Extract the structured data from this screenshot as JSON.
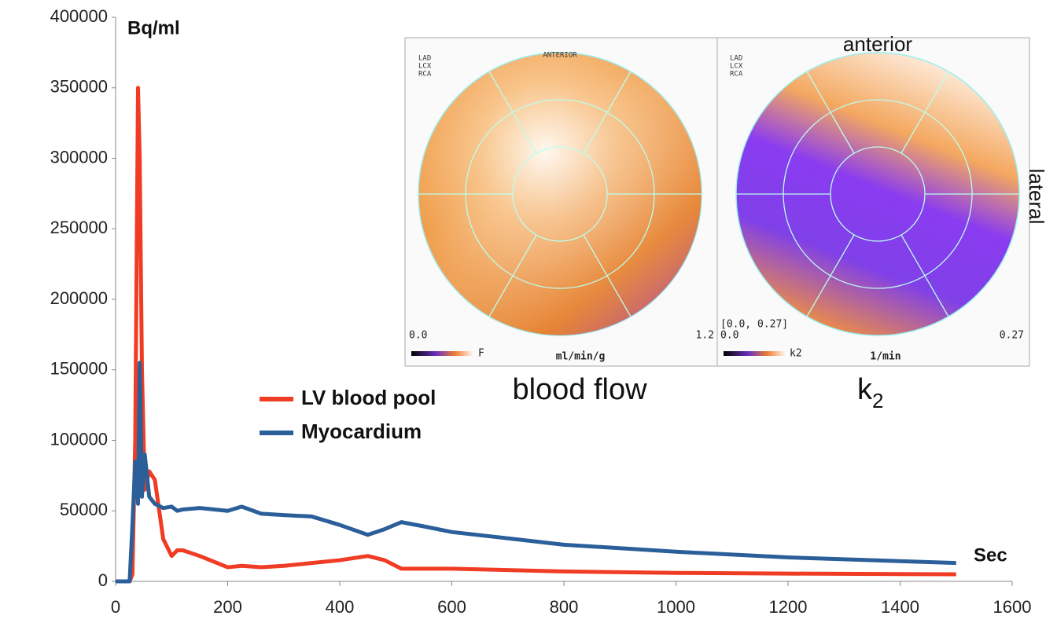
{
  "chart_data": {
    "type": "line",
    "y_label": "Bq/ml",
    "x_label": "Sec",
    "x": [
      0,
      25,
      30,
      35,
      40,
      43,
      47,
      52,
      60,
      70,
      85,
      100,
      110,
      120,
      150,
      200,
      225,
      260,
      300,
      350,
      400,
      450,
      480,
      510,
      550,
      600,
      800,
      1000,
      1200,
      1500
    ],
    "series": [
      {
        "name": "LV blood pool",
        "color": "#f03c24",
        "values": [
          0,
          0,
          5000,
          100000,
          350000,
          300000,
          150000,
          65000,
          78000,
          72000,
          30000,
          18000,
          22000,
          22000,
          18000,
          10000,
          11000,
          10000,
          11000,
          13000,
          15000,
          18000,
          15000,
          9000,
          9000,
          9000,
          7000,
          6000,
          5500,
          5000
        ]
      },
      {
        "name": "Myocardium",
        "color": "#2b5f9a",
        "values": [
          0,
          0,
          40000,
          85000,
          55000,
          155000,
          60000,
          90000,
          60000,
          55000,
          52000,
          53000,
          50000,
          51000,
          52000,
          50000,
          53000,
          48000,
          47000,
          46000,
          40000,
          33000,
          37000,
          42000,
          39000,
          35000,
          26000,
          21000,
          17000,
          13000
        ]
      }
    ],
    "xlim": [
      0,
      1600
    ],
    "xticks": [
      0,
      200,
      400,
      600,
      800,
      1000,
      1200,
      1400,
      1600
    ],
    "ylim": [
      0,
      400000
    ],
    "yticks": [
      0,
      50000,
      100000,
      150000,
      200000,
      250000,
      300000,
      350000,
      400000
    ],
    "grid": false
  },
  "insets": {
    "anterior": "anterior",
    "lateral": "lateral",
    "left": {
      "caption": "blood flow",
      "top_small": "ANTERIOR",
      "min": "0.0",
      "max": "1.2",
      "bar_label": "F",
      "unit": "ml/min/g",
      "keys": [
        "LAD",
        "LCX",
        "RCA"
      ]
    },
    "right": {
      "caption_main": "k",
      "caption_sub": "2",
      "range": "[0.0, 0.27]",
      "min": "0.0",
      "max": "0.27",
      "bar_label": "k2",
      "unit": "1/min",
      "keys": [
        "LAD",
        "LCX",
        "RCA"
      ]
    }
  }
}
